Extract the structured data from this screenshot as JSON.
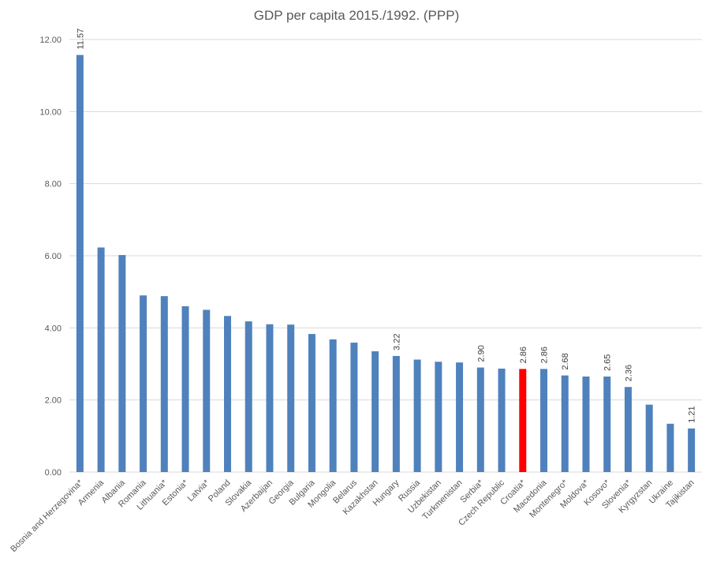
{
  "chart_data": {
    "type": "bar",
    "title": "GDP per capita 2015./1992. (PPP)",
    "xlabel": "",
    "ylabel": "",
    "ylim": [
      0,
      12
    ],
    "yticks": [
      "0.00",
      "2.00",
      "4.00",
      "6.00",
      "8.00",
      "10.00",
      "12.00"
    ],
    "grid": true,
    "legend": "none",
    "bar_color": "#4f81bd",
    "highlight_color": "#ff0000",
    "highlight_category": "Croatia*",
    "categories": [
      "Bosnia and Herzegovina*",
      "Armenia",
      "Albania",
      "Romania",
      "Lithuania*",
      "Estonia*",
      "Latvia*",
      "Poland",
      "Slovakia",
      "Azerbaijan",
      "Georgia",
      "Bulgaria",
      "Mongolia",
      "Belarus",
      "Kazakhstan",
      "Hungary",
      "Russia",
      "Uzbekistan",
      "Turkmenistan",
      "Serbia*",
      "Czech Republic",
      "Croatia*",
      "Macedonia",
      "Montenegro*",
      "Moldova*",
      "Kosovo*",
      "Slovenia*",
      "Kyrgyzstan",
      "Ukraine",
      "Tajikistan"
    ],
    "values": [
      11.57,
      6.23,
      6.02,
      4.9,
      4.88,
      4.6,
      4.5,
      4.33,
      4.18,
      4.1,
      4.09,
      3.83,
      3.68,
      3.59,
      3.35,
      3.22,
      3.12,
      3.06,
      3.04,
      2.9,
      2.87,
      2.86,
      2.86,
      2.68,
      2.65,
      2.65,
      2.36,
      1.87,
      1.34,
      1.21
    ],
    "data_labels": [
      "11.57",
      "",
      "",
      "",
      "",
      "",
      "",
      "",
      "",
      "",
      "",
      "",
      "",
      "",
      "",
      "3.22",
      "",
      "",
      "",
      "2.90",
      "",
      "2.86",
      "2.86",
      "2.68",
      "",
      "2.65",
      "2.36",
      "",
      "",
      "1.21"
    ]
  }
}
